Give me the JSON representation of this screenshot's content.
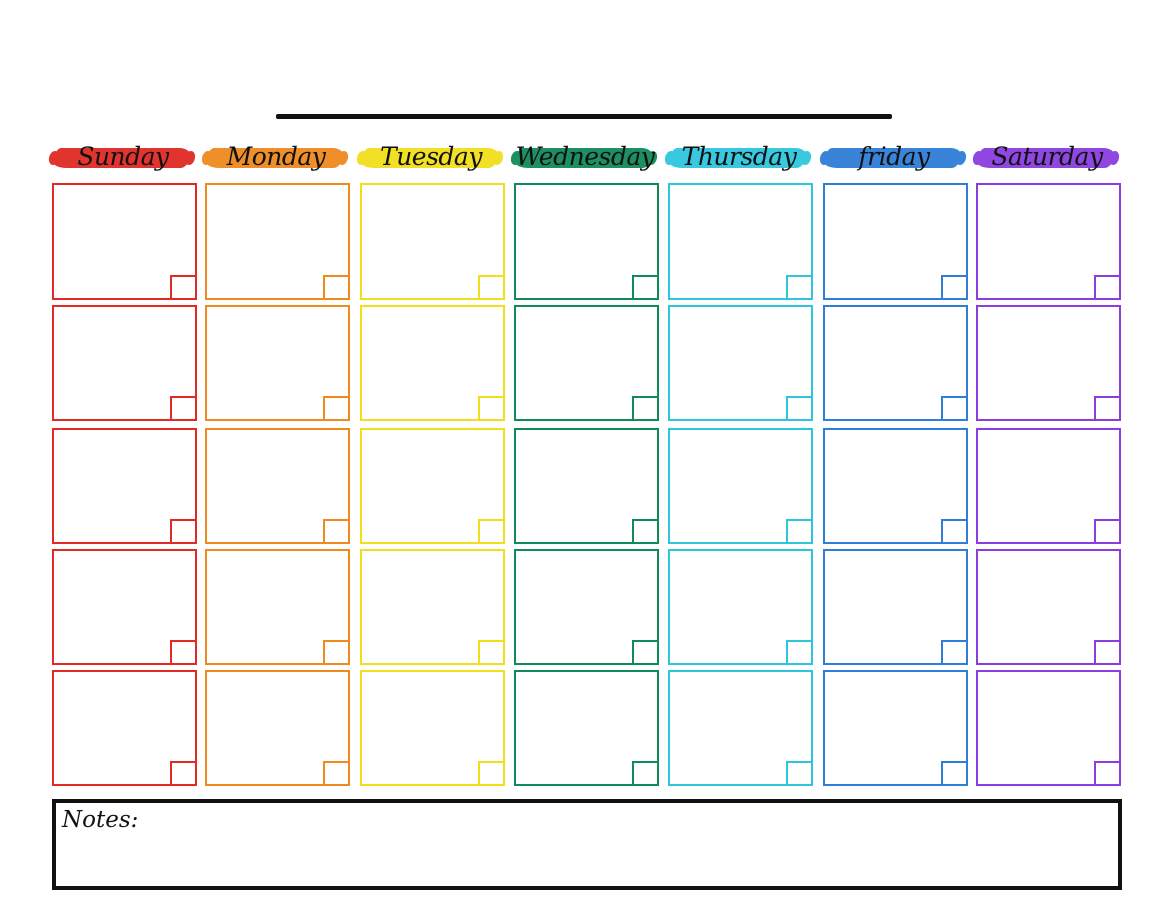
{
  "days": [
    {
      "label": "Sunday",
      "color": "#e02a23"
    },
    {
      "label": "Monday",
      "color": "#ef8a1e"
    },
    {
      "label": "Tuesday",
      "color": "#f2df1b"
    },
    {
      "label": "Wednesday",
      "color": "#118a5a"
    },
    {
      "label": "Thursday",
      "color": "#2ec6df"
    },
    {
      "label": "friday",
      "color": "#2f7ed8"
    },
    {
      "label": "Saturday",
      "color": "#8b3de0"
    }
  ],
  "weeks": 5,
  "notes": {
    "label": "Notes:",
    "value": ""
  }
}
